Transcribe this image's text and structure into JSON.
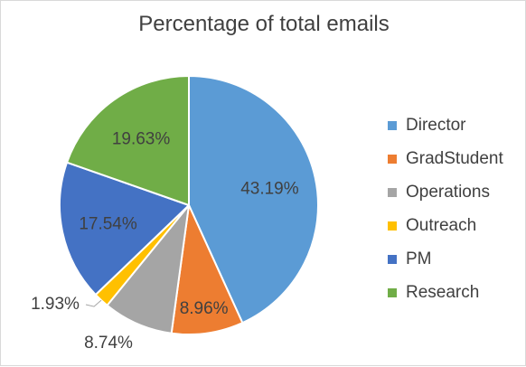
{
  "chart_data": {
    "type": "pie",
    "title": "Percentage of total emails",
    "categories": [
      "Director",
      "GradStudent",
      "Operations",
      "Outreach",
      "PM",
      "Research"
    ],
    "values": [
      43.19,
      8.96,
      8.74,
      1.93,
      17.54,
      19.63
    ],
    "labels": [
      "43.19%",
      "8.96%",
      "8.74%",
      "1.93%",
      "17.54%",
      "19.63%"
    ],
    "colors": [
      "#5b9bd5",
      "#ed7d31",
      "#a5a5a5",
      "#ffc000",
      "#4472c4",
      "#70ad47"
    ],
    "legend_position": "right"
  }
}
